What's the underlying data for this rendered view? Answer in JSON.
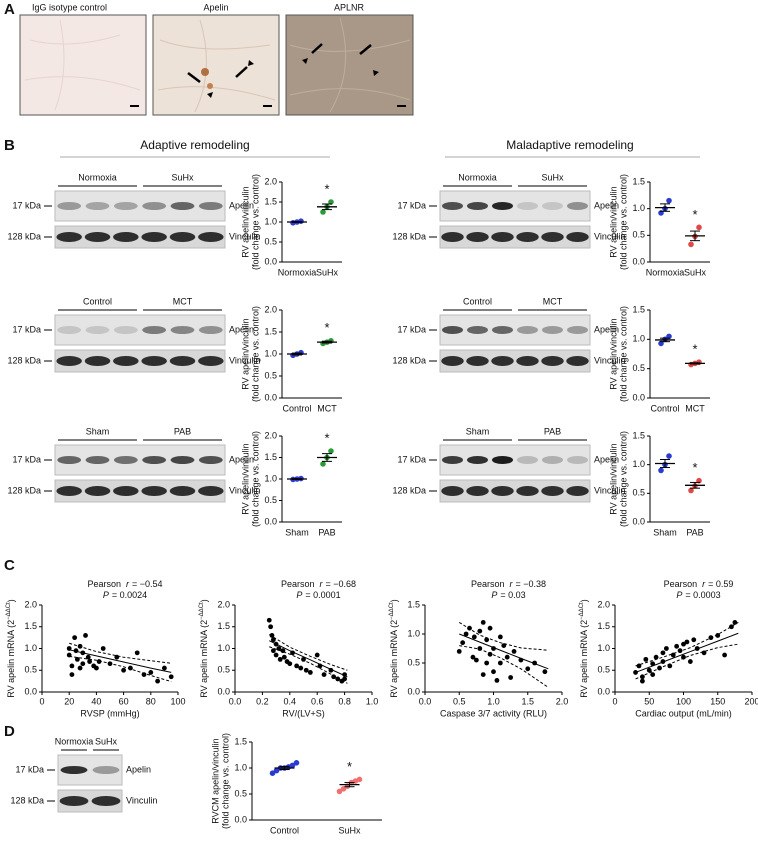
{
  "panels": {
    "labels": [
      "A",
      "B",
      "C",
      "D"
    ],
    "A": {
      "images": [
        "IgG isotype control",
        "Apelin",
        "APLNR"
      ]
    },
    "B": {
      "headers": [
        "Adaptive remodeling",
        "Maladaptive remodeling"
      ],
      "blots": [
        {
          "groups": [
            "Normoxia",
            "SuHx"
          ],
          "markers": [
            "17 kDa",
            "128 kDa"
          ],
          "bands": [
            "Apelin",
            "Vinculin"
          ]
        },
        {
          "groups": [
            "Normoxia",
            "SuHx"
          ],
          "markers": [
            "17 kDa",
            "128 kDa"
          ],
          "bands": [
            "Apelin",
            "Vinculin"
          ]
        },
        {
          "groups": [
            "Control",
            "MCT"
          ],
          "markers": [
            "17 kDa",
            "128 kDa"
          ],
          "bands": [
            "Apelin",
            "Vinculin"
          ]
        },
        {
          "groups": [
            "Control",
            "MCT"
          ],
          "markers": [
            "17 kDa",
            "128 kDa"
          ],
          "bands": [
            "Apelin",
            "Vinculin"
          ]
        },
        {
          "groups": [
            "Sham",
            "PAB"
          ],
          "markers": [
            "17 kDa",
            "128 kDa"
          ],
          "bands": [
            "Apelin",
            "Vinculin"
          ]
        },
        {
          "groups": [
            "Sham",
            "PAB"
          ],
          "markers": [
            "17 kDa",
            "128 kDa"
          ],
          "bands": [
            "Apelin",
            "Vinculin"
          ]
        }
      ]
    },
    "D": {
      "blot": {
        "groups": [
          "Normoxia",
          "SuHx"
        ],
        "markers": [
          "17 kDa",
          "128 kDa"
        ],
        "bands": [
          "Apelin",
          "Vinculin"
        ]
      }
    }
  },
  "chart_data": [
    {
      "type": "dot",
      "ylabel": [
        "RV apelin/vinculin",
        "(fold change vs. control)"
      ],
      "categories": [
        "Normoxia",
        "SuHx"
      ],
      "colors": [
        "#2b3bd0",
        "#2a9a3a"
      ],
      "points": [
        [
          0.98,
          1.0,
          1.02
        ],
        [
          1.25,
          1.38,
          1.5
        ]
      ],
      "means": [
        1.0,
        1.38
      ],
      "sems": [
        0.01,
        0.07
      ],
      "annotation": "*",
      "ylim": [
        0,
        2
      ],
      "yticks": [
        {
          "value": 0,
          "label": "0.0"
        },
        0.5,
        {
          "value": 1,
          "label": "1.0"
        },
        1.5,
        {
          "value": 2,
          "label": "2.0"
        }
      ]
    },
    {
      "type": "dot",
      "ylabel": [
        "RV apelin/vinculin",
        "(fold change vs. control)"
      ],
      "categories": [
        "Normoxia",
        "SuHx"
      ],
      "colors": [
        "#2b3bd0",
        "#e04848"
      ],
      "points": [
        [
          0.92,
          1.0,
          1.15
        ],
        [
          0.33,
          0.48,
          0.65
        ]
      ],
      "means": [
        1.02,
        0.49
      ],
      "sems": [
        0.07,
        0.09
      ],
      "annotation": "*",
      "ylim": [
        0,
        1.5
      ],
      "yticks": [
        {
          "value": 0,
          "label": "0.0"
        },
        0.5,
        {
          "value": 1,
          "label": "1.0"
        },
        1.5
      ]
    },
    {
      "type": "dot",
      "ylabel": [
        "RV apelin/vinculin",
        "(fold change vs. control)"
      ],
      "categories": [
        "Control",
        "MCT"
      ],
      "colors": [
        "#2b3bd0",
        "#2a9a3a"
      ],
      "points": [
        [
          0.97,
          1.0,
          1.03
        ],
        [
          1.24,
          1.27,
          1.3
        ]
      ],
      "means": [
        1.0,
        1.27
      ],
      "sems": [
        0.02,
        0.02
      ],
      "annotation": "*",
      "ylim": [
        0,
        2
      ],
      "yticks": [
        {
          "value": 0,
          "label": "0.0"
        },
        0.5,
        {
          "value": 1,
          "label": "1.0"
        },
        1.5,
        {
          "value": 2,
          "label": "2.0"
        }
      ]
    },
    {
      "type": "dot",
      "ylabel": [
        "RV apelin/vinculin",
        "(fold change vs. control)"
      ],
      "categories": [
        "Control",
        "MCT"
      ],
      "colors": [
        "#2b3bd0",
        "#e04848"
      ],
      "points": [
        [
          0.93,
          1.0,
          1.05
        ],
        [
          0.57,
          0.59,
          0.61
        ]
      ],
      "means": [
        0.99,
        0.59
      ],
      "sems": [
        0.03,
        0.01
      ],
      "annotation": "*",
      "ylim": [
        0,
        1.5
      ],
      "yticks": [
        {
          "value": 0,
          "label": "0.0"
        },
        0.5,
        {
          "value": 1,
          "label": "1.0"
        },
        1.5
      ]
    },
    {
      "type": "dot",
      "ylabel": [
        "RV apelin/vinculin",
        "(fold change vs. control)"
      ],
      "categories": [
        "Sham",
        "PAB"
      ],
      "colors": [
        "#2b3bd0",
        "#2a9a3a"
      ],
      "points": [
        [
          0.99,
          1.0,
          1.01
        ],
        [
          1.35,
          1.5,
          1.65
        ]
      ],
      "means": [
        1.0,
        1.5
      ],
      "sems": [
        0.01,
        0.09
      ],
      "annotation": "*",
      "ylim": [
        0,
        2
      ],
      "yticks": [
        {
          "value": 0,
          "label": "0.0"
        },
        0.5,
        {
          "value": 1,
          "label": "1.0"
        },
        1.5,
        {
          "value": 2,
          "label": "2.0"
        }
      ]
    },
    {
      "type": "dot",
      "ylabel": [
        "RV apelin/vinculin",
        "(fold change vs. control)"
      ],
      "categories": [
        "Sham",
        "PAB"
      ],
      "colors": [
        "#2b3bd0",
        "#e04848"
      ],
      "points": [
        [
          0.9,
          1.0,
          1.15
        ],
        [
          0.55,
          0.63,
          0.72
        ]
      ],
      "means": [
        1.02,
        0.64
      ],
      "sems": [
        0.07,
        0.05
      ],
      "annotation": "*",
      "ylim": [
        0,
        1.5
      ],
      "yticks": [
        {
          "value": 0,
          "label": "0.0"
        },
        0.5,
        {
          "value": 1,
          "label": "1.0"
        },
        1.5
      ]
    },
    {
      "type": "scatter",
      "color": "#000000",
      "xlabel": "RVSP (mmHg)",
      "ylabel": "RV apelin mRNA (2",
      "ylabel_sup": "−ΔΔCt",
      "ylabel_end": ")",
      "stats": {
        "pearson": "Pearson",
        "r": "r",
        "r_value": "= −0.54",
        "p": "P",
        "p_value": "= 0.0024"
      },
      "xlim": [
        0,
        100
      ],
      "xticks": [
        0,
        20,
        40,
        60,
        80,
        100
      ],
      "ylim": [
        0,
        2
      ],
      "yticks": [
        {
          "value": 0,
          "label": "0.0"
        },
        0.5,
        {
          "value": 1,
          "label": "1.0"
        },
        1.5,
        {
          "value": 2,
          "label": "2.0"
        }
      ],
      "x": [
        20,
        20,
        22,
        22,
        24,
        25,
        26,
        28,
        28,
        30,
        30,
        32,
        34,
        35,
        38,
        40,
        42,
        45,
        50,
        55,
        60,
        65,
        70,
        75,
        80,
        85,
        90,
        95
      ],
      "y": [
        1.0,
        0.85,
        0.6,
        0.4,
        1.25,
        0.95,
        0.75,
        0.55,
        1.05,
        0.9,
        0.65,
        1.3,
        0.8,
        0.7,
        0.6,
        0.55,
        0.7,
        1.0,
        0.65,
        0.8,
        0.5,
        0.55,
        0.9,
        0.4,
        0.45,
        0.25,
        0.55,
        0.35
      ],
      "fit_x": [
        20,
        40,
        60,
        80,
        95
      ],
      "fit": [
        0.97,
        0.83,
        0.69,
        0.55,
        0.45
      ],
      "ci_upper": [
        1.12,
        0.93,
        0.8,
        0.72,
        0.66
      ],
      "ci_lower": [
        0.82,
        0.73,
        0.58,
        0.38,
        0.24
      ]
    },
    {
      "type": "scatter",
      "color": "#000000",
      "xlabel": "RV/(LV+S)",
      "ylabel": "RV apelin mRNA (2",
      "ylabel_sup": "−ΔΔCt",
      "ylabel_end": ")",
      "stats": {
        "pearson": "Pearson",
        "r": "r",
        "r_value": "= −0.68",
        "p": "P",
        "p_value": "= 0.0001"
      },
      "xlim": [
        0,
        1
      ],
      "xticks": [
        {
          "value": 0,
          "label": "0.0"
        },
        0.2,
        0.4,
        0.6,
        0.8,
        {
          "value": 1,
          "label": "1.0"
        }
      ],
      "ylim": [
        0,
        2
      ],
      "yticks": [
        {
          "value": 0,
          "label": "0.0"
        },
        0.5,
        {
          "value": 1,
          "label": "1.0"
        },
        1.5,
        {
          "value": 2,
          "label": "2.0"
        }
      ],
      "x": [
        0.25,
        0.26,
        0.27,
        0.28,
        0.28,
        0.3,
        0.3,
        0.32,
        0.33,
        0.35,
        0.36,
        0.38,
        0.4,
        0.42,
        0.45,
        0.48,
        0.5,
        0.52,
        0.55,
        0.6,
        0.62,
        0.65,
        0.7,
        0.72,
        0.75,
        0.78,
        0.8,
        0.8
      ],
      "y": [
        1.65,
        1.5,
        1.3,
        1.2,
        0.95,
        1.1,
        0.85,
        1.0,
        0.75,
        0.95,
        0.8,
        0.7,
        0.65,
        0.9,
        0.6,
        0.55,
        0.75,
        0.5,
        0.45,
        0.85,
        0.6,
        0.4,
        0.5,
        0.35,
        0.3,
        0.25,
        0.4,
        0.3
      ],
      "fit_x": [
        0.25,
        0.4,
        0.55,
        0.7,
        0.82
      ],
      "fit": [
        1.18,
        0.95,
        0.74,
        0.52,
        0.35
      ],
      "ci_upper": [
        1.32,
        1.03,
        0.82,
        0.63,
        0.5
      ],
      "ci_lower": [
        1.04,
        0.87,
        0.66,
        0.41,
        0.2
      ]
    },
    {
      "type": "scatter",
      "color": "#000000",
      "xlabel": "Caspase 3/7 activity (RLU)",
      "ylabel": "RV apelin mRNA (2",
      "ylabel_sup": "−ΔΔCt",
      "ylabel_end": ")",
      "stats": {
        "pearson": "Pearson",
        "r": "r",
        "r_value": "= −0.38",
        "p": "P",
        "p_value": "= 0.03"
      },
      "xlim": [
        0,
        2
      ],
      "xticks": [
        {
          "value": 0,
          "label": "0.0"
        },
        0.5,
        {
          "value": 1,
          "label": "1.0"
        },
        1.5,
        {
          "value": 2,
          "label": "2.0"
        }
      ],
      "ylim": [
        0,
        1.5
      ],
      "yticks": [
        {
          "value": 0,
          "label": "0.0"
        },
        0.5,
        {
          "value": 1,
          "label": "1.0"
        },
        1.5
      ],
      "x": [
        0.5,
        0.55,
        0.6,
        0.65,
        0.7,
        0.72,
        0.75,
        0.8,
        0.8,
        0.85,
        0.85,
        0.9,
        0.9,
        0.95,
        0.95,
        1.0,
        1.0,
        1.05,
        1.1,
        1.1,
        1.15,
        1.2,
        1.25,
        1.3,
        1.4,
        1.5,
        1.6,
        1.75
      ],
      "y": [
        0.7,
        0.85,
        1.0,
        1.1,
        0.6,
        0.95,
        0.55,
        0.75,
        1.05,
        1.2,
        0.3,
        0.5,
        0.9,
        0.65,
        1.1,
        0.35,
        0.75,
        0.2,
        0.95,
        0.5,
        0.8,
        0.6,
        0.25,
        0.7,
        0.55,
        0.4,
        0.5,
        0.35
      ],
      "fit_x": [
        0.5,
        0.8,
        1.1,
        1.4,
        1.8
      ],
      "fit": [
        1.0,
        0.86,
        0.72,
        0.58,
        0.4
      ],
      "ci_upper": [
        1.2,
        0.98,
        0.85,
        0.76,
        0.72
      ],
      "ci_lower": [
        0.8,
        0.74,
        0.59,
        0.4,
        0.08
      ]
    },
    {
      "type": "scatter",
      "color": "#000000",
      "xlabel": "Cardiac output (mL/min)",
      "ylabel": "RV apelin mRNA (2",
      "ylabel_sup": "−ΔΔCt",
      "ylabel_end": ")",
      "stats": {
        "pearson": "Pearson",
        "r": "r",
        "r_value": "= 0.59",
        "p": "P",
        "p_value": "= 0.0003"
      },
      "xlim": [
        0,
        200
      ],
      "xticks": [
        0,
        50,
        100,
        150,
        200
      ],
      "ylim": [
        0,
        2
      ],
      "yticks": [
        {
          "value": 0,
          "label": "0.0"
        },
        0.5,
        {
          "value": 1,
          "label": "1.0"
        },
        1.5,
        {
          "value": 2,
          "label": "2.0"
        }
      ],
      "x": [
        30,
        35,
        40,
        40,
        45,
        50,
        55,
        55,
        60,
        65,
        70,
        70,
        75,
        80,
        85,
        90,
        95,
        100,
        100,
        105,
        110,
        115,
        120,
        130,
        140,
        150,
        160,
        170,
        175
      ],
      "y": [
        0.45,
        0.6,
        0.35,
        0.25,
        0.75,
        0.5,
        0.4,
        0.65,
        0.8,
        0.55,
        0.9,
        0.7,
        1.0,
        0.6,
        0.85,
        1.05,
        0.95,
        1.1,
        0.8,
        1.15,
        0.7,
        1.2,
        1.0,
        0.9,
        1.25,
        1.3,
        0.85,
        1.5,
        1.6
      ],
      "fit_x": [
        30,
        70,
        110,
        150,
        180
      ],
      "fit": [
        0.45,
        0.69,
        0.93,
        1.17,
        1.35
      ],
      "ci_upper": [
        0.6,
        0.8,
        1.02,
        1.32,
        1.6
      ],
      "ci_lower": [
        0.3,
        0.58,
        0.84,
        1.02,
        1.1
      ]
    },
    {
      "type": "dot",
      "ylabel": [
        "RVCM apelin/vinculin",
        "(fold change vs. control)"
      ],
      "categories": [
        "Control",
        "SuHx"
      ],
      "colors": [
        "#2b3bd0",
        "#f07070"
      ],
      "points": [
        [
          0.9,
          0.95,
          1.0,
          1.0,
          1.02,
          1.05,
          1.1
        ],
        [
          0.55,
          0.6,
          0.65,
          0.72,
          0.75,
          0.78
        ]
      ],
      "means": [
        1.0,
        0.68
      ],
      "sems": [
        0.03,
        0.04
      ],
      "annotation": "*",
      "ylim": [
        0,
        1.5
      ],
      "yticks": [
        {
          "value": 0,
          "label": "0.0"
        },
        0.5,
        {
          "value": 1,
          "label": "1.0"
        },
        1.5
      ]
    }
  ]
}
